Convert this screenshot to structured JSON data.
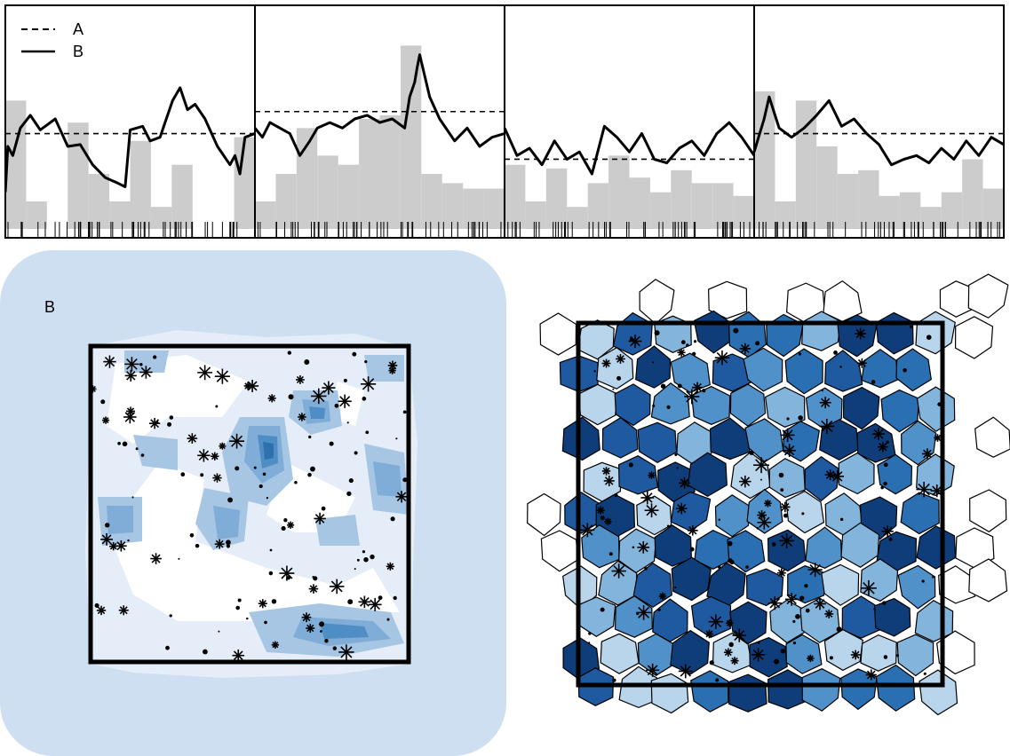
{
  "chart_data": [
    {
      "type": "line",
      "panels": 4,
      "legend": {
        "placement": "top-left",
        "entries": [
          {
            "label": "A",
            "style": "dashed"
          },
          {
            "label": "B",
            "style": "solid"
          }
        ]
      },
      "series": [
        {
          "name": "A",
          "panel_levels": [
            0.52,
            0.64,
            0.38,
            0.52
          ]
        },
        {
          "name": "B",
          "peaks": [
            [
              [
                0.0,
                0.2
              ],
              [
                0.01,
                0.45
              ],
              [
                0.03,
                0.4
              ],
              [
                0.06,
                0.55
              ],
              [
                0.1,
                0.62
              ],
              [
                0.14,
                0.54
              ],
              [
                0.2,
                0.6
              ],
              [
                0.25,
                0.45
              ],
              [
                0.3,
                0.46
              ],
              [
                0.35,
                0.35
              ],
              [
                0.4,
                0.28
              ],
              [
                0.45,
                0.25
              ],
              [
                0.48,
                0.23
              ],
              [
                0.5,
                0.54
              ],
              [
                0.55,
                0.56
              ],
              [
                0.58,
                0.48
              ],
              [
                0.62,
                0.5
              ],
              [
                0.64,
                0.58
              ],
              [
                0.67,
                0.7
              ],
              [
                0.7,
                0.77
              ],
              [
                0.73,
                0.65
              ],
              [
                0.76,
                0.68
              ],
              [
                0.8,
                0.6
              ],
              [
                0.85,
                0.45
              ],
              [
                0.9,
                0.35
              ],
              [
                0.92,
                0.4
              ],
              [
                0.94,
                0.3
              ],
              [
                0.96,
                0.5
              ],
              [
                1.0,
                0.52
              ]
            ],
            [
              [
                0.0,
                0.55
              ],
              [
                0.03,
                0.5
              ],
              [
                0.06,
                0.58
              ],
              [
                0.1,
                0.55
              ],
              [
                0.14,
                0.52
              ],
              [
                0.18,
                0.4
              ],
              [
                0.22,
                0.48
              ],
              [
                0.25,
                0.55
              ],
              [
                0.3,
                0.58
              ],
              [
                0.35,
                0.55
              ],
              [
                0.4,
                0.6
              ],
              [
                0.45,
                0.62
              ],
              [
                0.5,
                0.58
              ],
              [
                0.55,
                0.6
              ],
              [
                0.6,
                0.55
              ],
              [
                0.62,
                0.72
              ],
              [
                0.64,
                0.8
              ],
              [
                0.65,
                0.88
              ],
              [
                0.66,
                0.95
              ],
              [
                0.7,
                0.72
              ],
              [
                0.74,
                0.6
              ],
              [
                0.8,
                0.48
              ],
              [
                0.85,
                0.55
              ],
              [
                0.9,
                0.45
              ],
              [
                0.95,
                0.5
              ],
              [
                1.0,
                0.52
              ]
            ],
            [
              [
                0.0,
                0.55
              ],
              [
                0.05,
                0.4
              ],
              [
                0.1,
                0.44
              ],
              [
                0.15,
                0.35
              ],
              [
                0.2,
                0.48
              ],
              [
                0.25,
                0.38
              ],
              [
                0.3,
                0.42
              ],
              [
                0.35,
                0.3
              ],
              [
                0.4,
                0.56
              ],
              [
                0.45,
                0.5
              ],
              [
                0.5,
                0.42
              ],
              [
                0.55,
                0.52
              ],
              [
                0.6,
                0.38
              ],
              [
                0.65,
                0.36
              ],
              [
                0.7,
                0.44
              ],
              [
                0.75,
                0.48
              ],
              [
                0.8,
                0.4
              ],
              [
                0.85,
                0.52
              ],
              [
                0.9,
                0.58
              ],
              [
                0.95,
                0.5
              ],
              [
                1.0,
                0.4
              ]
            ],
            [
              [
                0.0,
                0.42
              ],
              [
                0.04,
                0.6
              ],
              [
                0.06,
                0.72
              ],
              [
                0.1,
                0.55
              ],
              [
                0.15,
                0.5
              ],
              [
                0.2,
                0.55
              ],
              [
                0.25,
                0.62
              ],
              [
                0.3,
                0.7
              ],
              [
                0.35,
                0.56
              ],
              [
                0.4,
                0.6
              ],
              [
                0.45,
                0.52
              ],
              [
                0.5,
                0.46
              ],
              [
                0.55,
                0.35
              ],
              [
                0.6,
                0.38
              ],
              [
                0.65,
                0.4
              ],
              [
                0.7,
                0.36
              ],
              [
                0.75,
                0.44
              ],
              [
                0.8,
                0.38
              ],
              [
                0.85,
                0.48
              ],
              [
                0.9,
                0.4
              ],
              [
                0.95,
                0.5
              ],
              [
                1.0,
                0.46
              ]
            ]
          ]
        }
      ],
      "bars": [
        [
          0.7,
          0.15,
          0.0,
          0.58,
          0.3,
          0.15,
          0.48,
          0.12,
          0.35,
          0.0,
          0.0,
          0.5
        ],
        [
          0.15,
          0.3,
          0.55,
          0.4,
          0.35,
          0.6,
          0.62,
          1.0,
          0.3,
          0.25,
          0.22,
          0.22
        ],
        [
          0.35,
          0.15,
          0.33,
          0.12,
          0.25,
          0.4,
          0.28,
          0.2,
          0.32,
          0.25,
          0.25,
          0.18
        ],
        [
          0.75,
          0.15,
          0.7,
          0.45,
          0.3,
          0.32,
          0.18,
          0.2,
          0.12,
          0.2,
          0.38,
          0.22
        ]
      ],
      "ylim": [
        0,
        1
      ],
      "grid": false
    },
    {
      "type": "heatmap",
      "label": "B",
      "palette": [
        "#ffffff",
        "#e5eef8",
        "#cddff0",
        "#a6c6e4",
        "#7fadd7",
        "#4f8ec4",
        "#2f70ae"
      ],
      "window_frame": true
    },
    {
      "type": "heatmap",
      "palette": [
        "#eef4fb",
        "#b9d5ec",
        "#82b4dc",
        "#4f91c8",
        "#2a6fb1",
        "#1f5aa0",
        "#0f3d7a"
      ],
      "window_frame": true
    }
  ]
}
